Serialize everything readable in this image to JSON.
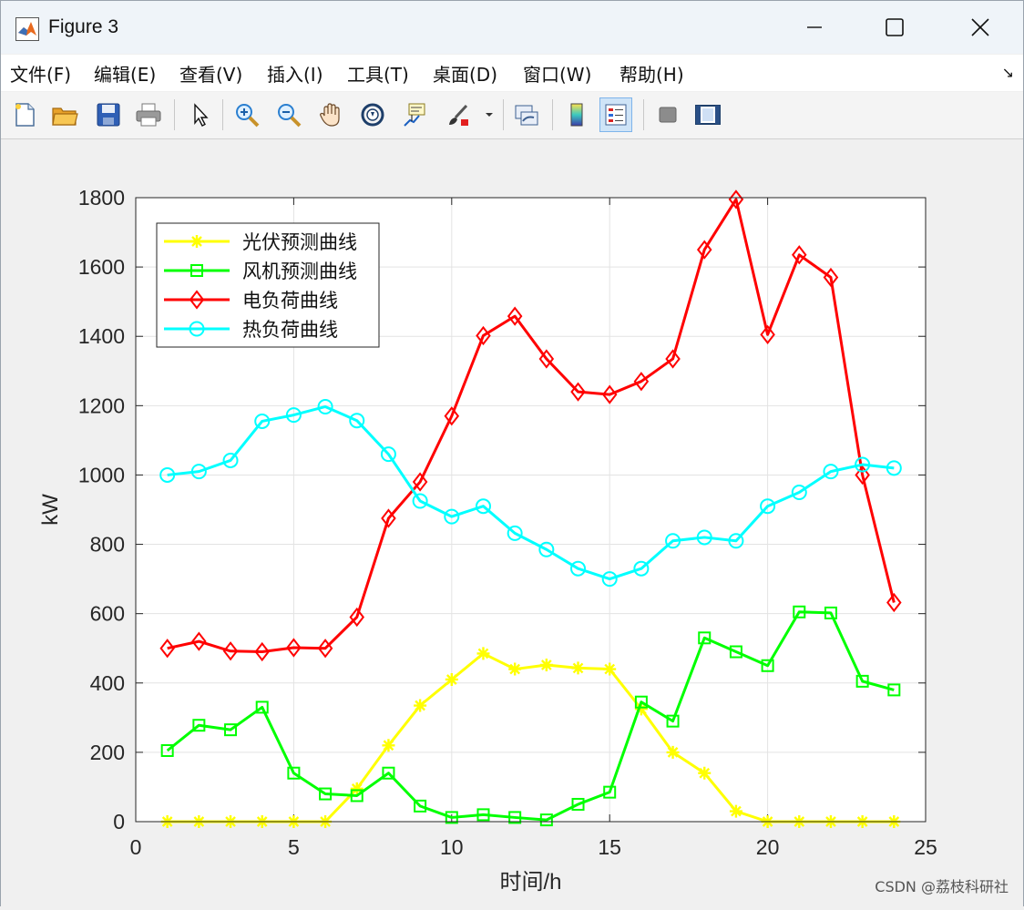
{
  "window": {
    "title": "Figure 3"
  },
  "menu": {
    "items": [
      "文件(F)",
      "编辑(E)",
      "查看(V)",
      "插入(I)",
      "工具(T)",
      "桌面(D)",
      "窗口(W)",
      "帮助(H)"
    ]
  },
  "toolbar": {
    "icons": [
      "new-file-icon",
      "open-folder-icon",
      "save-icon",
      "print-icon",
      "pointer-icon",
      "zoom-in-icon",
      "zoom-out-icon",
      "pan-hand-icon",
      "rotate-3d-icon",
      "data-cursor-icon",
      "brush-icon",
      "link-plot-icon",
      "colorbar-icon",
      "legend-icon",
      "hide-plot-tools-icon",
      "show-plot-tools-icon"
    ]
  },
  "watermark": "CSDN @荔枝科研社",
  "chart_data": {
    "type": "line",
    "xlabel": "时间/h",
    "ylabel": "kW",
    "xlim": [
      0,
      25
    ],
    "ylim": [
      0,
      1800
    ],
    "xticks": [
      0,
      5,
      10,
      15,
      20,
      25
    ],
    "yticks": [
      0,
      200,
      400,
      600,
      800,
      1000,
      1200,
      1400,
      1600,
      1800
    ],
    "grid": true,
    "legend_position": "top-left",
    "x": [
      1,
      2,
      3,
      4,
      5,
      6,
      7,
      8,
      9,
      10,
      11,
      12,
      13,
      14,
      15,
      16,
      17,
      18,
      19,
      20,
      21,
      22,
      23,
      24
    ],
    "series": [
      {
        "name": "光伏预测曲线",
        "color": "#ffff00",
        "marker": "star",
        "values": [
          0,
          0,
          0,
          0,
          0,
          0,
          95,
          220,
          335,
          410,
          485,
          440,
          452,
          443,
          440,
          325,
          200,
          140,
          30,
          0,
          0,
          0,
          0,
          0
        ]
      },
      {
        "name": "风机预测曲线",
        "color": "#00ff00",
        "marker": "square",
        "values": [
          205,
          278,
          265,
          330,
          140,
          80,
          75,
          140,
          45,
          12,
          20,
          12,
          5,
          50,
          85,
          345,
          290,
          530,
          490,
          450,
          605,
          602,
          405,
          380
        ]
      },
      {
        "name": "电负荷曲线",
        "color": "#ff0000",
        "marker": "diamond",
        "values": [
          500,
          520,
          492,
          490,
          502,
          500,
          590,
          875,
          980,
          1170,
          1402,
          1458,
          1335,
          1240,
          1232,
          1270,
          1335,
          1650,
          1795,
          1405,
          1635,
          1570,
          1000,
          632
        ]
      },
      {
        "name": "热负荷曲线",
        "color": "#00ffff",
        "marker": "circle",
        "values": [
          1000,
          1010,
          1042,
          1155,
          1173,
          1197,
          1157,
          1060,
          925,
          880,
          910,
          832,
          785,
          730,
          700,
          730,
          810,
          820,
          810,
          910,
          950,
          1010,
          1030,
          1020
        ]
      }
    ]
  }
}
